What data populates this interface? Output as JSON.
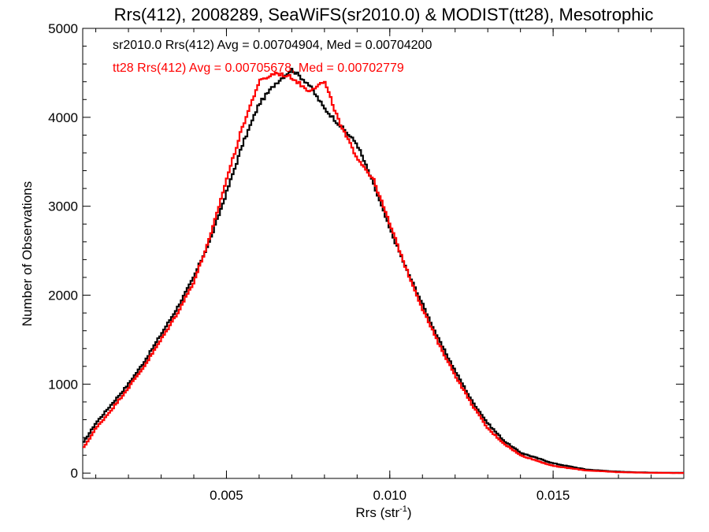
{
  "chart_data": {
    "type": "line",
    "title": "Rrs(412), 2008289, SeaWiFS(sr2010.0) & MODIST(tt28), Mesotrophic",
    "xlabel": "Rrs (str",
    "xlabel_sup": "-1",
    "xlabel_close": ")",
    "ylabel": "Number of Observations",
    "xlim": [
      0.0006,
      0.019
    ],
    "ylim": [
      -60,
      5000
    ],
    "xticks": [
      0.005,
      0.01,
      0.015
    ],
    "xtick_labels": [
      "0.005",
      "0.010",
      "0.015"
    ],
    "yticks": [
      0,
      1000,
      2000,
      3000,
      4000,
      5000
    ],
    "ytick_labels": [
      "0",
      "1000",
      "2000",
      "3000",
      "4000",
      "5000"
    ],
    "grid": false,
    "legend_position": "top-left",
    "series": [
      {
        "name": "sr2010.0",
        "legend": "sr2010.0 Rrs(412) Avg = 0.00704904, Med = 0.00704200",
        "color": "#000000",
        "x": [
          0.0006,
          0.001,
          0.0015,
          0.002,
          0.0025,
          0.003,
          0.0035,
          0.004,
          0.0045,
          0.005,
          0.0055,
          0.006,
          0.0065,
          0.007,
          0.0075,
          0.008,
          0.0085,
          0.009,
          0.0095,
          0.01,
          0.0105,
          0.011,
          0.0115,
          0.012,
          0.0125,
          0.013,
          0.0135,
          0.014,
          0.015,
          0.016,
          0.017,
          0.018,
          0.019
        ],
        "y": [
          330,
          560,
          780,
          1000,
          1260,
          1560,
          1860,
          2200,
          2620,
          3150,
          3700,
          4150,
          4380,
          4540,
          4380,
          4100,
          3900,
          3700,
          3250,
          2750,
          2300,
          1900,
          1500,
          1150,
          820,
          560,
          360,
          230,
          110,
          40,
          15,
          5,
          2
        ]
      },
      {
        "name": "tt28",
        "legend": "tt28 Rrs(412) Avg = 0.00705678, Med = 0.00702779",
        "color": "#ff0000",
        "x": [
          0.0006,
          0.001,
          0.0015,
          0.002,
          0.0025,
          0.003,
          0.0035,
          0.004,
          0.0045,
          0.005,
          0.0055,
          0.006,
          0.0065,
          0.007,
          0.0075,
          0.008,
          0.0085,
          0.009,
          0.0095,
          0.01,
          0.0105,
          0.011,
          0.0115,
          0.012,
          0.0125,
          0.013,
          0.0135,
          0.014,
          0.015,
          0.016,
          0.017,
          0.018,
          0.019
        ],
        "y": [
          270,
          500,
          720,
          960,
          1210,
          1500,
          1800,
          2150,
          2650,
          3300,
          3900,
          4400,
          4500,
          4450,
          4300,
          4400,
          3900,
          3550,
          3300,
          2800,
          2300,
          1850,
          1450,
          1100,
          780,
          500,
          330,
          200,
          80,
          30,
          10,
          3,
          1
        ]
      }
    ]
  }
}
